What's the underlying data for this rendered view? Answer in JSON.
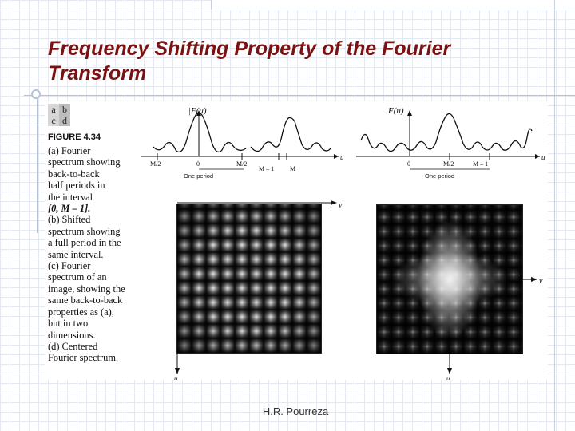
{
  "slide": {
    "title_line1": "Frequency Shifting Property of the Fourier",
    "title_line2": "Transform",
    "footer": "H.R. Pourreza"
  },
  "figure": {
    "panel_tags": [
      "a",
      "b",
      "c",
      "d"
    ],
    "label": "FIGURE 4.34",
    "caption_lines": [
      "(a) Fourier",
      "spectrum showing",
      "back-to-back",
      "half periods in",
      "the interval",
      "[0, M – 1].",
      "(b) Shifted",
      "spectrum showing",
      "a full period in the",
      "same interval.",
      "(c) Fourier",
      "spectrum of an",
      "image, showing the",
      "same back-to-back",
      "properties as (a),",
      "but in two",
      "dimensions.",
      "(d) Centered",
      "Fourier spectrum."
    ],
    "plot_a": {
      "ylabel": "|F(u)|",
      "xlabel": "u",
      "ticks": [
        "M/2",
        "0",
        "M/2",
        "M – 1",
        "M"
      ],
      "period_label": "One period"
    },
    "plot_b": {
      "ylabel": "F(u)",
      "xlabel": "u",
      "ticks": [
        "0",
        "M/2",
        "M – 1"
      ],
      "period_label": "One period"
    },
    "image_c": {
      "horizontal_axis": "v",
      "vertical_axis": "u"
    },
    "image_d": {
      "horizontal_axis": "v",
      "vertical_axis": "u"
    }
  },
  "colors": {
    "title": "#7a1212",
    "grid": "#e4e8f1",
    "accent_lines": "#b8c2d6"
  }
}
